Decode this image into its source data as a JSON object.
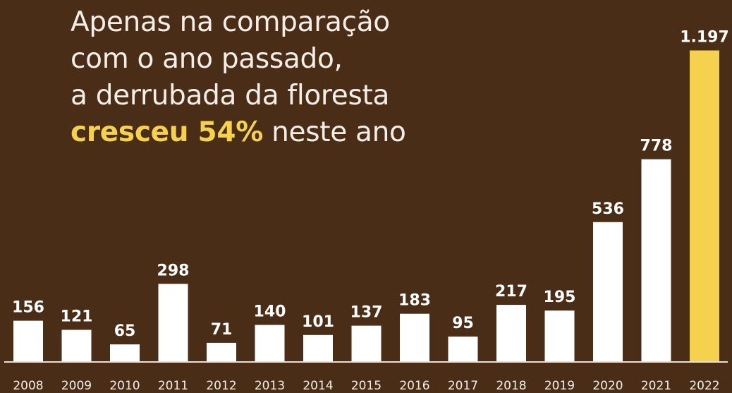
{
  "headline": {
    "line1": "Apenas na comparação",
    "line2": "com o ano passado,",
    "line3": "a derrubada da floresta",
    "line4_highlight": "cresceu 54%",
    "line4_rest": " neste ano"
  },
  "colors": {
    "background": "#4a2d17",
    "bar": "#ffffff",
    "highlight": "#f4d24d",
    "text": "#f3eee7",
    "axis_line": "#e9e2d8"
  },
  "chart_data": {
    "type": "bar",
    "categories": [
      "2008",
      "2009",
      "2010",
      "2011",
      "2012",
      "2013",
      "2014",
      "2015",
      "2016",
      "2017",
      "2018",
      "2019",
      "2020",
      "2021",
      "2022"
    ],
    "values": [
      156,
      121,
      65,
      298,
      71,
      140,
      101,
      137,
      183,
      95,
      217,
      195,
      536,
      778,
      1197
    ],
    "value_labels": [
      "156",
      "121",
      "65",
      "298",
      "71",
      "140",
      "101",
      "137",
      "183",
      "95",
      "217",
      "195",
      "536",
      "778",
      "1.197"
    ],
    "highlighted_category": "2022",
    "ylim": [
      0,
      1250
    ],
    "grid": false,
    "legend": "none"
  }
}
